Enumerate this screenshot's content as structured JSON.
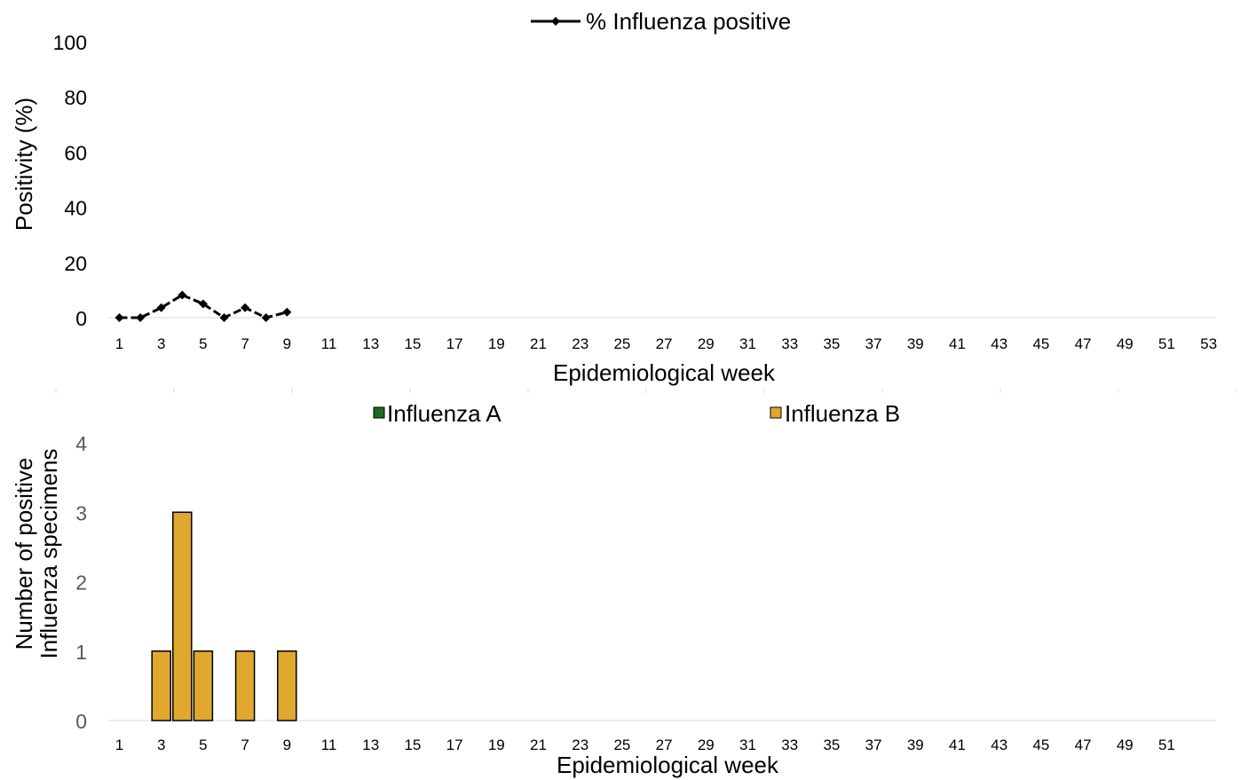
{
  "chart_data": [
    {
      "type": "line",
      "xlabel": "Epidemiological week",
      "ylabel": "Positivity (%)",
      "ylim": [
        0,
        100
      ],
      "yticks": [
        "0",
        "20",
        "40",
        "60",
        "80",
        "100"
      ],
      "xticks": [
        "1",
        "3",
        "5",
        "7",
        "9",
        "11",
        "13",
        "15",
        "17",
        "19",
        "21",
        "23",
        "25",
        "27",
        "29",
        "31",
        "33",
        "35",
        "37",
        "39",
        "41",
        "43",
        "45",
        "47",
        "49",
        "51",
        "53"
      ],
      "xlim": [
        1,
        53
      ],
      "legend_position": "top",
      "grid": false,
      "series": [
        {
          "name": "% Influenza positive",
          "color": "#000000",
          "marker": "diamond",
          "x": [
            1,
            2,
            3,
            4,
            5,
            6,
            7,
            8,
            9
          ],
          "y": [
            0,
            0,
            3.6,
            8.2,
            5,
            0,
            3.6,
            0,
            2
          ]
        }
      ]
    },
    {
      "type": "bar",
      "stacked": true,
      "xlabel": "Epidemiological week",
      "ylabel": [
        "Number of positive",
        "Influenza specimens"
      ],
      "ylim": [
        0,
        4
      ],
      "yticks": [
        "0",
        "1",
        "2",
        "3",
        "4"
      ],
      "xticks": [
        "1",
        "3",
        "5",
        "7",
        "9",
        "11",
        "13",
        "15",
        "17",
        "19",
        "21",
        "23",
        "25",
        "27",
        "29",
        "31",
        "33",
        "35",
        "37",
        "39",
        "41",
        "43",
        "45",
        "47",
        "49",
        "51"
      ],
      "xlim": [
        1,
        53
      ],
      "legend_position": "top",
      "grid": false,
      "series": [
        {
          "name": "Influenza A",
          "color": "#1E6B1E",
          "x": [
            3,
            4,
            5,
            7,
            9
          ],
          "values": [
            0,
            0,
            0,
            0,
            0
          ]
        },
        {
          "name": "Influenza B",
          "color": "#E0A82E",
          "x": [
            3,
            4,
            5,
            7,
            9
          ],
          "values": [
            1,
            3,
            1,
            1,
            1
          ]
        }
      ]
    }
  ]
}
